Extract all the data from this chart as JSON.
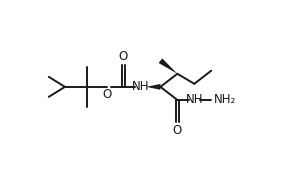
{
  "background": "#ffffff",
  "line_color": "#1a1a1a",
  "line_width": 1.4,
  "font_size": 8.5,
  "fig_width": 3.04,
  "fig_height": 1.72,
  "dpi": 100,
  "xlim": [
    0,
    3.04
  ],
  "ylim": [
    0,
    1.72
  ]
}
